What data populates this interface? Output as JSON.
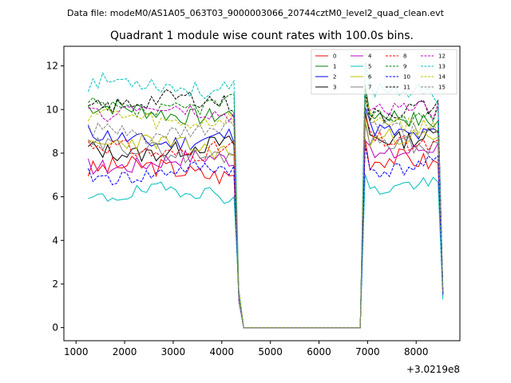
{
  "chart_data": {
    "type": "line",
    "file_caption": "Data file: modeM0/AS1A05_063T03_9000003066_20744cztM0_level2_quad_clean.evt",
    "title": "Quadrant 1 module wise count rates with 100.0s bins.",
    "xlabel": "",
    "ylabel": "",
    "x_offset_label": "+3.0219e8",
    "xlim": [
      750,
      8900
    ],
    "ylim": [
      -0.6,
      12.9
    ],
    "x_ticks": [
      1000,
      2000,
      3000,
      4000,
      5000,
      6000,
      7000,
      8000
    ],
    "x_tick_labels": [
      "1000",
      "2000",
      "3000",
      "4000",
      "5000",
      "6000",
      "7000",
      "8000"
    ],
    "y_ticks": [
      0,
      2,
      4,
      6,
      8,
      10,
      12
    ],
    "y_tick_labels": [
      "0",
      "2",
      "4",
      "6",
      "8",
      "10",
      "12"
    ],
    "legend_position": "top-right",
    "time_grid": {
      "seg1_start": 1250,
      "seg1_end": 4350,
      "gap_start": 4450,
      "gap_end": 6850,
      "seg2_start": 6950,
      "seg2_end": 8550,
      "step": 100
    },
    "series": [
      {
        "name": "0",
        "color": "#ff0000",
        "dash": "solid",
        "level1": 7.2,
        "level2": 7.6,
        "amp": 0.45,
        "seed": 3,
        "final": 2.0
      },
      {
        "name": "1",
        "color": "#008000",
        "dash": "solid",
        "level1": 9.9,
        "level2": 9.6,
        "amp": 0.4,
        "seed": 7,
        "final": 1.6
      },
      {
        "name": "2",
        "color": "#0000ff",
        "dash": "solid",
        "level1": 8.7,
        "level2": 9.0,
        "amp": 0.4,
        "seed": 11,
        "final": 1.6
      },
      {
        "name": "3",
        "color": "#000000",
        "dash": "solid",
        "level1": 8.2,
        "level2": 8.8,
        "amp": 0.4,
        "seed": 13,
        "final": 1.5
      },
      {
        "name": "4",
        "color": "#bf00bf",
        "dash": "solid",
        "level1": 7.6,
        "level2": 8.1,
        "amp": 0.4,
        "seed": 17,
        "final": 1.5
      },
      {
        "name": "5",
        "color": "#00bfbf",
        "dash": "solid",
        "level1": 6.1,
        "level2": 6.4,
        "amp": 0.35,
        "seed": 19,
        "final": 1.3
      },
      {
        "name": "6",
        "color": "#bfbf00",
        "dash": "solid",
        "level1": 8.3,
        "level2": 8.6,
        "amp": 0.4,
        "seed": 23,
        "final": 1.6
      },
      {
        "name": "7",
        "color": "#808080",
        "dash": "solid",
        "level1": 8.1,
        "level2": 8.4,
        "amp": 0.4,
        "seed": 29,
        "final": 1.5
      },
      {
        "name": "8",
        "color": "#ff0000",
        "dash": "dashed",
        "level1": 8.2,
        "level2": 8.5,
        "amp": 0.4,
        "seed": 31,
        "final": 1.6
      },
      {
        "name": "9",
        "color": "#008000",
        "dash": "dashed",
        "level1": 10.1,
        "level2": 9.8,
        "amp": 0.4,
        "seed": 37,
        "final": 1.7
      },
      {
        "name": "10",
        "color": "#0000ff",
        "dash": "dashed",
        "level1": 7.1,
        "level2": 7.4,
        "amp": 0.35,
        "seed": 41,
        "final": 1.5
      },
      {
        "name": "11",
        "color": "#000000",
        "dash": "dashed",
        "level1": 10.3,
        "level2": 9.9,
        "amp": 0.4,
        "seed": 43,
        "final": 1.7
      },
      {
        "name": "12",
        "color": "#bf00bf",
        "dash": "dashed",
        "level1": 9.8,
        "level2": 9.9,
        "amp": 0.4,
        "seed": 47,
        "final": 1.7
      },
      {
        "name": "13",
        "color": "#00bfbf",
        "dash": "dashed",
        "level1": 11.1,
        "level2": 10.8,
        "amp": 0.4,
        "seed": 53,
        "final": 1.8
      },
      {
        "name": "14",
        "color": "#bfbf00",
        "dash": "dashed",
        "level1": 9.6,
        "level2": 9.4,
        "amp": 0.4,
        "seed": 59,
        "final": 1.6
      },
      {
        "name": "15",
        "color": "#808080",
        "dash": "dashed",
        "level1": 9.0,
        "level2": 9.2,
        "amp": 0.4,
        "seed": 61,
        "final": 1.6
      }
    ]
  }
}
